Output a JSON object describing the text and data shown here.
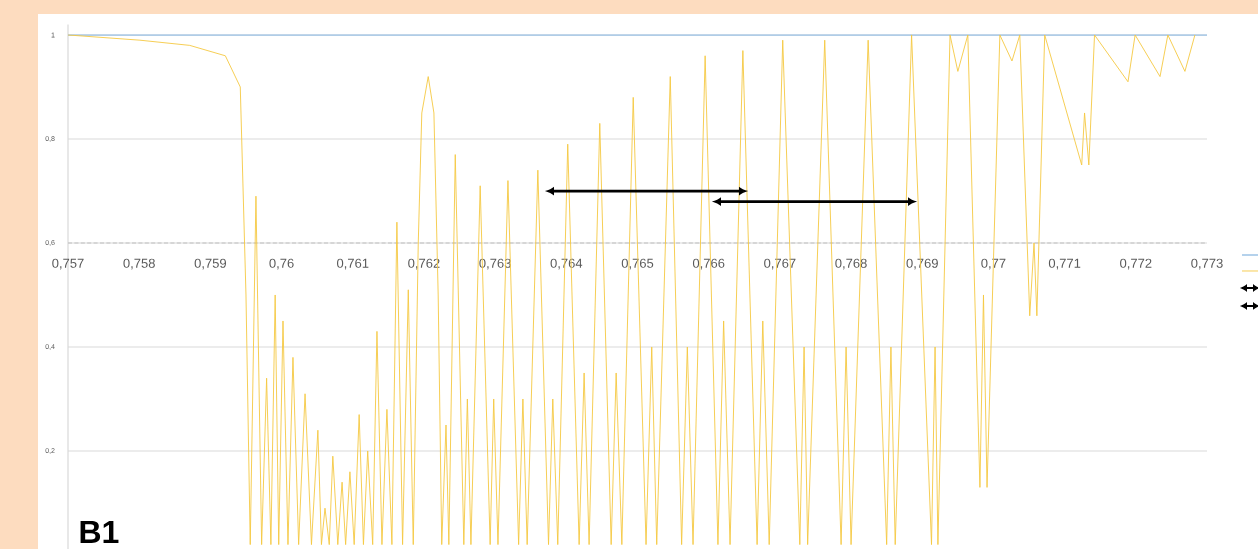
{
  "chart_data": {
    "type": "line",
    "xlim": [
      0.757,
      0.773
    ],
    "ylim": [
      0.01,
      1.02
    ],
    "xticks": [
      {
        "value": 0.757,
        "label": "0,757"
      },
      {
        "value": 0.758,
        "label": "0,758"
      },
      {
        "value": 0.759,
        "label": "0,759"
      },
      {
        "value": 0.76,
        "label": "0,76"
      },
      {
        "value": 0.761,
        "label": "0,761"
      },
      {
        "value": 0.762,
        "label": "0,762"
      },
      {
        "value": 0.763,
        "label": "0,763"
      },
      {
        "value": 0.764,
        "label": "0,764"
      },
      {
        "value": 0.765,
        "label": "0,765"
      },
      {
        "value": 0.766,
        "label": "0,766"
      },
      {
        "value": 0.767,
        "label": "0,767"
      },
      {
        "value": 0.768,
        "label": "0,768"
      },
      {
        "value": 0.769,
        "label": "0,769"
      },
      {
        "value": 0.77,
        "label": "0,77"
      },
      {
        "value": 0.771,
        "label": "0,771"
      },
      {
        "value": 0.772,
        "label": "0,772"
      },
      {
        "value": 0.773,
        "label": "0,773"
      }
    ],
    "yticks": [
      {
        "value": 0.2,
        "label": "0,2"
      },
      {
        "value": 0.4,
        "label": "0,4"
      },
      {
        "value": 0.6,
        "label": "0,6"
      },
      {
        "value": 0.8,
        "label": "0,8"
      },
      1
    ],
    "grid": "y",
    "ref_lines": [
      {
        "axis": "y",
        "value": 0.6,
        "color": "#bfbfbf",
        "line_style": "dashed"
      }
    ],
    "annotations": [
      "B1"
    ],
    "series": [
      {
        "color": "#9dc3e6",
        "x": [
          0.757,
          0.773
        ],
        "values": [
          1,
          1
        ]
      },
      {
        "color": "#f5c842",
        "x": [
          0.757,
          0.75801,
          0.75871,
          0.75921,
          0.75942,
          0.7595,
          0.75956,
          0.75964,
          0.75972,
          0.75979,
          0.75985,
          0.75991,
          0.75996,
          0.76002,
          0.76009,
          0.76016,
          0.76024,
          0.76033,
          0.76042,
          0.76051,
          0.76056,
          0.76061,
          0.76067,
          0.76072,
          0.76079,
          0.76085,
          0.7609,
          0.76096,
          0.76102,
          0.76109,
          0.76115,
          0.76121,
          0.76128,
          0.76134,
          0.76141,
          0.76148,
          0.76155,
          0.76162,
          0.7617,
          0.76178,
          0.76185,
          0.76192,
          0.76197,
          0.76206,
          0.76214,
          0.7622,
          0.76225,
          0.76231,
          0.76235,
          0.76244,
          0.76256,
          0.76261,
          0.76266,
          0.76279,
          0.76293,
          0.76298,
          0.76304,
          0.76318,
          0.76333,
          0.76339,
          0.76345,
          0.7636,
          0.76375,
          0.76381,
          0.76388,
          0.76402,
          0.76418,
          0.76425,
          0.76432,
          0.76447,
          0.76463,
          0.7647,
          0.76478,
          0.76494,
          0.76512,
          0.7652,
          0.76527,
          0.76546,
          0.76562,
          0.7657,
          0.76578,
          0.76595,
          0.76613,
          0.76621,
          0.7663,
          0.76648,
          0.76668,
          0.76676,
          0.76685,
          0.76704,
          0.76728,
          0.76734,
          0.76739,
          0.76763,
          0.76786,
          0.76793,
          0.768,
          0.76824,
          0.7685,
          0.76856,
          0.76862,
          0.76885,
          0.76913,
          0.76918,
          0.76922,
          0.76939,
          0.7695,
          0.76964,
          0.76981,
          0.76986,
          0.76991,
          0.77009,
          0.77026,
          0.77037,
          0.77051,
          0.77057,
          0.77061,
          0.77072,
          0.77124,
          0.77128,
          0.77134,
          0.77142,
          0.77189,
          0.77199,
          0.77234,
          0.77245,
          0.77269,
          0.77283
        ],
        "values": [
          1,
          0.99,
          0.98,
          0.96,
          0.9,
          0.5,
          0.02,
          0.69,
          0.02,
          0.34,
          0.02,
          0.5,
          0.02,
          0.45,
          0.02,
          0.38,
          0.02,
          0.31,
          0.02,
          0.24,
          0.02,
          0.09,
          0.02,
          0.19,
          0.02,
          0.14,
          0.02,
          0.16,
          0.02,
          0.27,
          0.02,
          0.2,
          0.02,
          0.43,
          0.02,
          0.28,
          0.02,
          0.64,
          0.02,
          0.51,
          0.02,
          0.6,
          0.85,
          0.92,
          0.85,
          0.5,
          0.02,
          0.25,
          0.02,
          0.77,
          0.02,
          0.3,
          0.02,
          0.71,
          0.02,
          0.3,
          0.02,
          0.72,
          0.02,
          0.3,
          0.02,
          0.74,
          0.02,
          0.3,
          0.02,
          0.79,
          0.02,
          0.35,
          0.02,
          0.83,
          0.02,
          0.35,
          0.02,
          0.88,
          0.02,
          0.4,
          0.02,
          0.92,
          0.02,
          0.4,
          0.02,
          0.96,
          0.02,
          0.45,
          0.02,
          0.97,
          0.02,
          0.45,
          0.02,
          0.99,
          0.02,
          0.4,
          0.02,
          0.99,
          0.02,
          0.4,
          0.02,
          0.99,
          0.02,
          0.4,
          0.02,
          1,
          0.02,
          0.4,
          0.02,
          1,
          0.93,
          1,
          0.13,
          0.5,
          0.13,
          1,
          0.95,
          1,
          0.46,
          0.6,
          0.46,
          1,
          0.75,
          0.85,
          0.75,
          1,
          0.91,
          1,
          0.92,
          1,
          0.93,
          1
        ]
      }
    ]
  }
}
